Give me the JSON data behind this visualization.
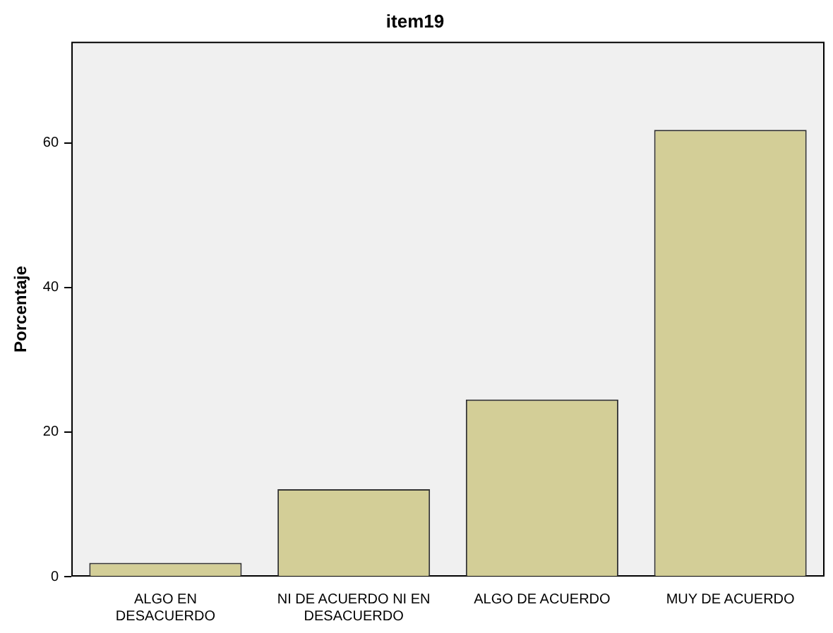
{
  "chart_data": {
    "type": "bar",
    "title": "item19",
    "ylabel": "Porcentaje",
    "categories": [
      "ALGO EN DESACUERDO",
      "NI DE ACUERDO NI EN DESACUERDO",
      "ALGO DE ACUERDO",
      "MUY DE ACUERDO"
    ],
    "values": [
      1.9,
      12.1,
      24.5,
      61.8
    ],
    "color": "#d3ce97",
    "ylim": [
      0,
      74
    ],
    "yticks": [
      0,
      20,
      40,
      60
    ],
    "grid": false,
    "legend": false
  }
}
